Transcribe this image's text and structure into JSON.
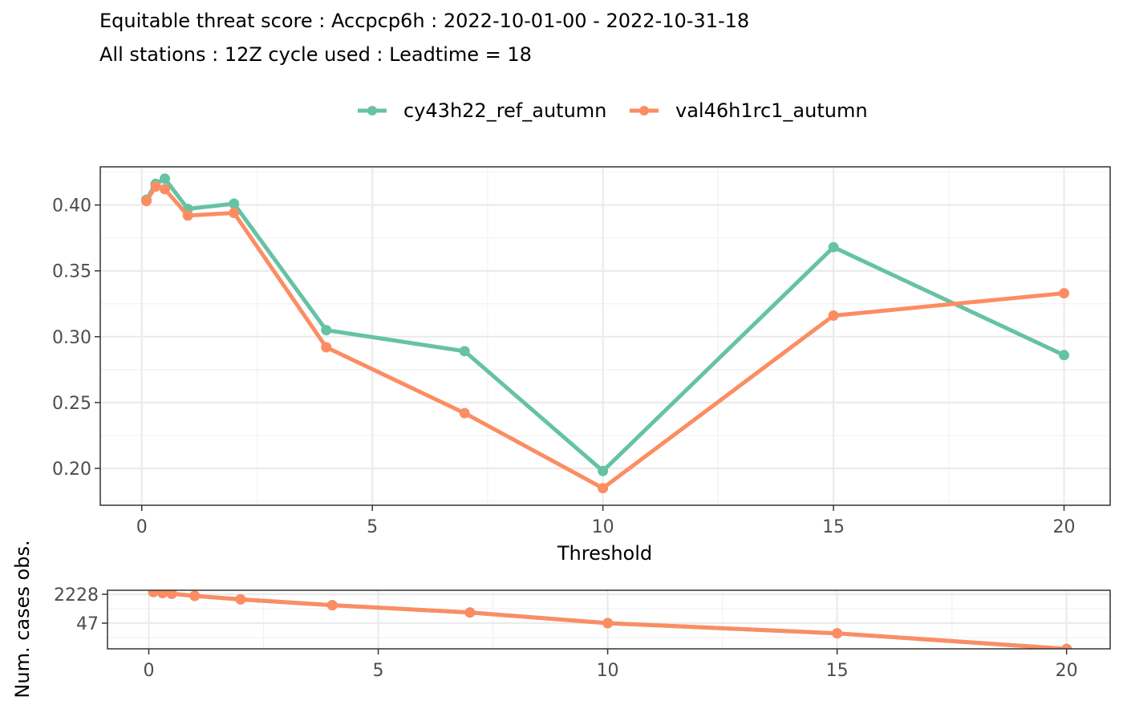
{
  "chart_data": [
    {
      "type": "line",
      "title": "Equitable threat score : Accpcp6h : 2022-10-01-00 - 2022-10-31-18",
      "subtitle": "All stations : 12Z cycle used : Leadtime = 18",
      "xlabel": "Threshold",
      "ylabel": "",
      "xlim": [
        -0.9,
        21.0
      ],
      "ylim": [
        0.172,
        0.429
      ],
      "x_ticks": [
        0,
        5,
        10,
        15,
        20
      ],
      "y_ticks": [
        0.2,
        0.25,
        0.3,
        0.35,
        0.4
      ],
      "y_tick_labels": [
        "0.20",
        "0.25",
        "0.30",
        "0.35",
        "0.40"
      ],
      "grid": true,
      "legend_position": "top",
      "x": [
        0.1,
        0.3,
        0.5,
        1,
        2,
        4,
        7,
        10,
        15,
        20
      ],
      "series": [
        {
          "name": "cy43h22_ref_autumn",
          "color": "#66c2a5",
          "values": [
            0.404,
            0.416,
            0.42,
            0.397,
            0.401,
            0.305,
            0.289,
            0.198,
            0.368,
            0.286
          ]
        },
        {
          "name": "val46h1rc1_autumn",
          "color": "#fc8d62",
          "values": [
            0.403,
            0.414,
            0.412,
            0.392,
            0.394,
            0.292,
            0.242,
            0.185,
            0.316,
            0.333
          ]
        }
      ]
    },
    {
      "type": "line",
      "title": "",
      "xlabel": "",
      "ylabel": "Num. cases obs.",
      "xlim": [
        -0.9,
        20.95
      ],
      "x_ticks": [
        0,
        5,
        10,
        15,
        20
      ],
      "y_ticks": [
        2228,
        47
      ],
      "y_tick_labels": [
        "2228",
        "47"
      ],
      "y_scale": "log",
      "grid": true,
      "x": [
        0.1,
        0.3,
        0.5,
        1,
        2,
        4,
        7,
        10,
        15,
        20
      ],
      "series": [
        {
          "color": "#66c2a5",
          "values": [
            3000,
            2620,
            2380,
            1800,
            1120,
            520,
            195,
            47,
            12,
            1.5
          ]
        },
        {
          "color": "#fc8d62",
          "values": [
            3000,
            2620,
            2380,
            1800,
            1120,
            520,
            195,
            47,
            12,
            1.5
          ]
        }
      ]
    }
  ]
}
